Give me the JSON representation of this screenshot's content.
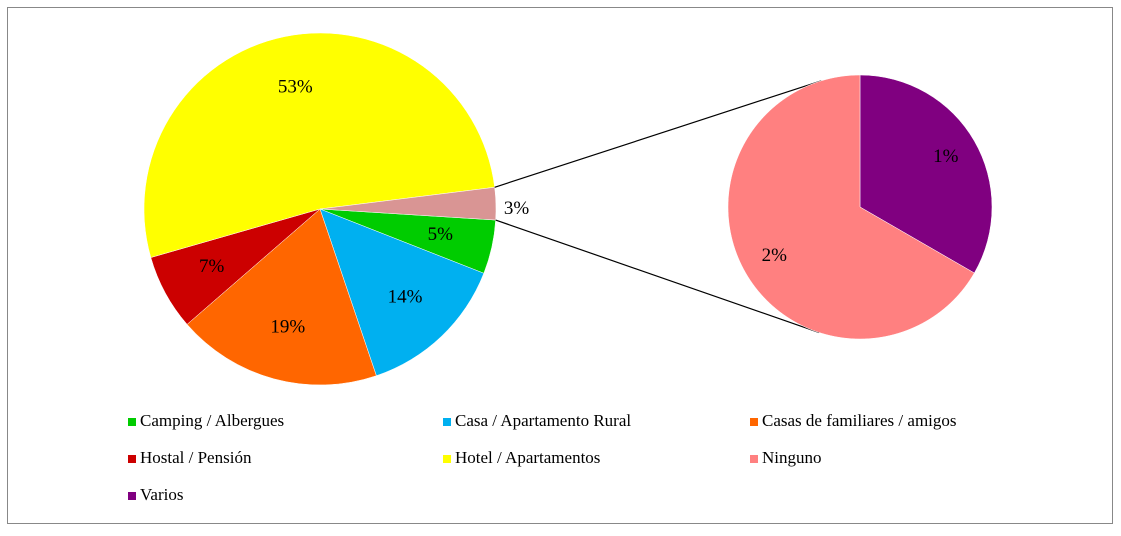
{
  "chart_data": {
    "type": "pie_of_pie",
    "categories": [
      "Camping / Albergues",
      "Casa / Apartamento Rural",
      "Casas de familiares / amigos",
      "Hostal / Pensión",
      "Hotel / Apartamentos",
      "Ninguno",
      "Varios"
    ],
    "values": [
      5,
      14,
      19,
      7,
      53,
      2,
      1
    ],
    "value_labels": [
      "5%",
      "14%",
      "19%",
      "7%",
      "53%",
      "2%",
      "1%"
    ],
    "colors": [
      "#00cc00",
      "#00b0f0",
      "#ff6600",
      "#cc0000",
      "#ffff00",
      "#ff8080",
      "#800080"
    ],
    "split": 2,
    "other_value": 3,
    "other_label": "3%",
    "other_color": "#d99594",
    "legend": "bottom"
  }
}
